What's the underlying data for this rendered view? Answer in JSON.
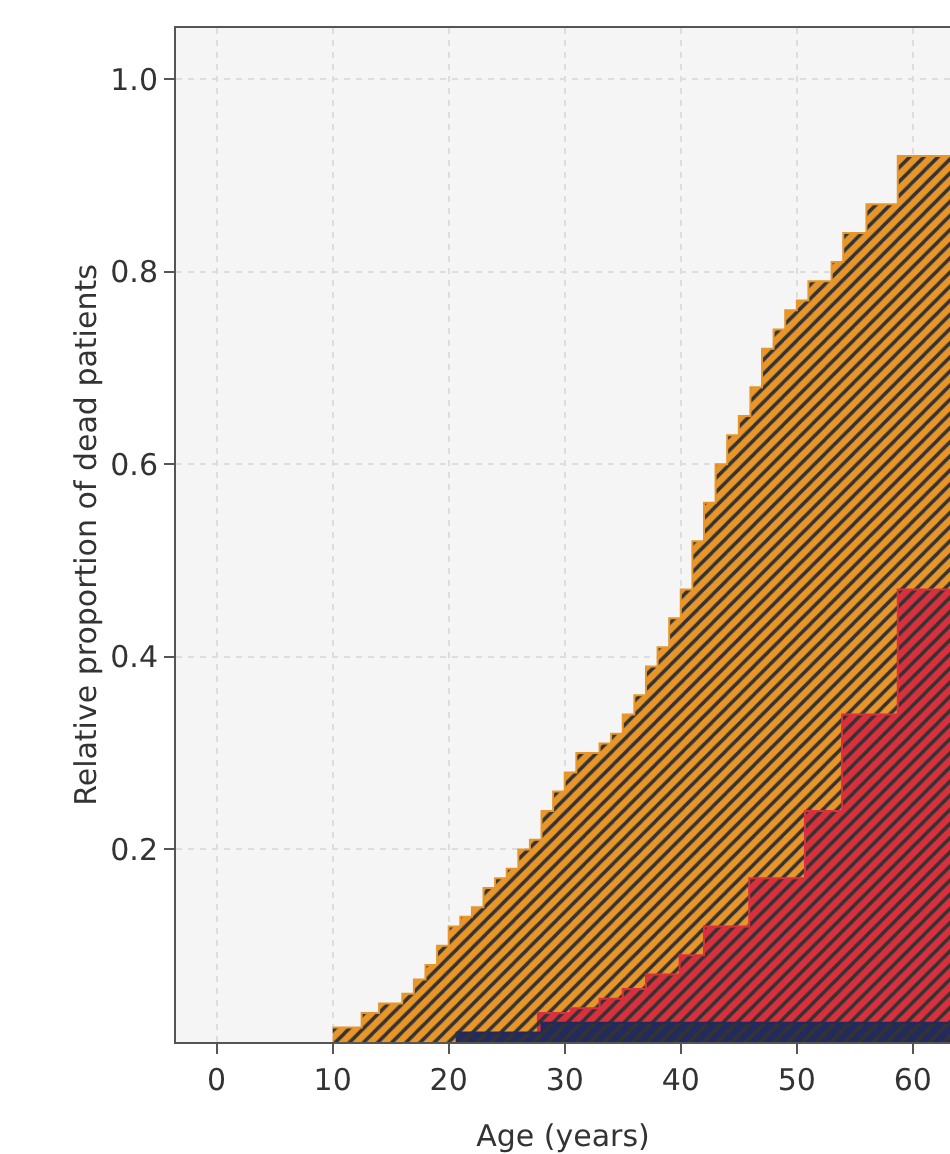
{
  "chart_data": {
    "type": "area",
    "xlabel": "Age (years)",
    "ylabel": "Relative proportion of dead patients",
    "xlim": [
      -3.5,
      63.2
    ],
    "ylim": [
      0,
      1.053
    ],
    "xticks": [
      0,
      10,
      20,
      30,
      40,
      50,
      60
    ],
    "yticks": [
      {
        "value": 0.2,
        "label": "0.2"
      },
      {
        "value": 0.4,
        "label": "0.4"
      },
      {
        "value": 0.6,
        "label": "0.6"
      },
      {
        "value": 0.8,
        "label": "0.8"
      },
      {
        "value": 1.0,
        "label": "1.0"
      }
    ],
    "grid": true,
    "series": [
      {
        "color": "#e8962a",
        "x": [
          10,
          12.5,
          12.5,
          14,
          14,
          16,
          16,
          17,
          17,
          18,
          18,
          19,
          19,
          20,
          20,
          21,
          21,
          22,
          22,
          23,
          23,
          24,
          24,
          25,
          25,
          26,
          26,
          27,
          27,
          28,
          28,
          29,
          29,
          30,
          30,
          31,
          31,
          33,
          33,
          34,
          34,
          35,
          35,
          36,
          36,
          37,
          37,
          38,
          38,
          39,
          39,
          40,
          40,
          41,
          41,
          42,
          42,
          43,
          43,
          44,
          44,
          45,
          45,
          46,
          46,
          47,
          47,
          48,
          48,
          49,
          49,
          50,
          50,
          51,
          51,
          53,
          53,
          54,
          54,
          56,
          56,
          58.7,
          58.7,
          63.2
        ],
        "values": [
          0.015,
          0.015,
          0.03,
          0.03,
          0.04,
          0.04,
          0.05,
          0.05,
          0.065,
          0.065,
          0.08,
          0.08,
          0.1,
          0.1,
          0.12,
          0.12,
          0.13,
          0.13,
          0.14,
          0.14,
          0.16,
          0.16,
          0.17,
          0.17,
          0.18,
          0.18,
          0.2,
          0.2,
          0.21,
          0.21,
          0.24,
          0.24,
          0.26,
          0.26,
          0.28,
          0.28,
          0.3,
          0.3,
          0.31,
          0.31,
          0.32,
          0.32,
          0.34,
          0.34,
          0.36,
          0.36,
          0.39,
          0.39,
          0.41,
          0.41,
          0.44,
          0.44,
          0.47,
          0.47,
          0.52,
          0.52,
          0.56,
          0.56,
          0.6,
          0.6,
          0.63,
          0.63,
          0.65,
          0.65,
          0.68,
          0.68,
          0.72,
          0.72,
          0.74,
          0.74,
          0.76,
          0.76,
          0.77,
          0.77,
          0.79,
          0.79,
          0.81,
          0.81,
          0.84,
          0.84,
          0.87,
          0.87,
          0.92,
          0.92
        ]
      },
      {
        "color": "#d9303e",
        "x": [
          27.6,
          30.5,
          30.5,
          33,
          33,
          35,
          35,
          37,
          37,
          39.9,
          39.9,
          42,
          42,
          45.9,
          45.9,
          50.7,
          50.7,
          53.9,
          53.9,
          58.7,
          58.7,
          63.2
        ],
        "values": [
          0.03,
          0.03,
          0.035,
          0.035,
          0.045,
          0.045,
          0.055,
          0.055,
          0.07,
          0.07,
          0.09,
          0.09,
          0.12,
          0.12,
          0.17,
          0.17,
          0.24,
          0.24,
          0.34,
          0.34,
          0.47,
          0.47
        ]
      },
      {
        "color": "#232a5c",
        "x": [
          20.6,
          28,
          28,
          63.2
        ],
        "values": [
          0.01,
          0.01,
          0.02,
          0.02
        ]
      }
    ]
  }
}
